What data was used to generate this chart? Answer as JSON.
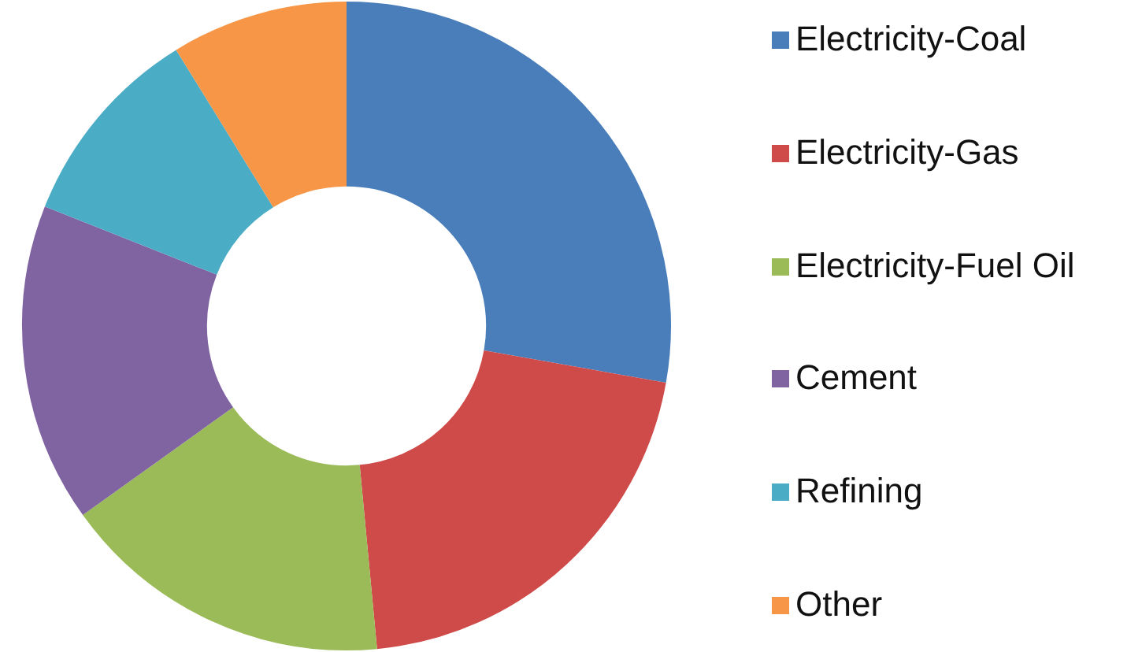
{
  "chart_data": {
    "type": "donut",
    "categories": [
      "Electricity-Coal",
      "Electricity-Gas",
      "Electricity-Fuel Oil",
      "Cement",
      "Refining",
      "Other"
    ],
    "values": [
      27.8,
      20.7,
      16.6,
      15.9,
      10.2,
      8.8
    ],
    "colors": [
      "#4a7ebb",
      "#cf4b49",
      "#9bbb59",
      "#8064a2",
      "#4bacc6",
      "#f79646"
    ],
    "legend": "right"
  }
}
